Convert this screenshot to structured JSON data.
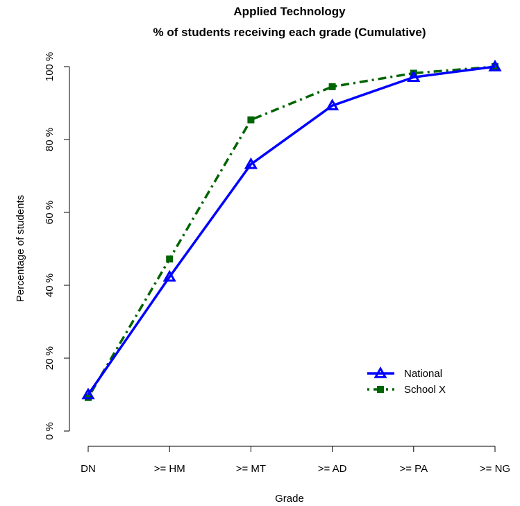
{
  "chart_data": {
    "type": "line",
    "title": "Applied Technology",
    "subtitle": "% of students receiving each grade (Cumulative)",
    "xlabel": "Grade",
    "ylabel": "Percentage of students",
    "categories": [
      "DN",
      ">= HM",
      ">= MT",
      ">= AD",
      ">= PA",
      ">= NG"
    ],
    "ylim": [
      0,
      100
    ],
    "yticks": [
      0,
      20,
      40,
      60,
      80,
      100
    ],
    "ytick_labels": [
      "0 %",
      "20 %",
      "40 %",
      "60 %",
      "80 %",
      "100 %"
    ],
    "grid": false,
    "legend_position": "bottom-right",
    "series": [
      {
        "name": "National",
        "values": [
          10,
          42.3,
          73.2,
          89.3,
          97.1,
          100
        ],
        "color": "#0000FF",
        "line_style": "solid",
        "marker": "triangle"
      },
      {
        "name": "School X",
        "values": [
          9.2,
          47.2,
          85.4,
          94.5,
          98.2,
          100
        ],
        "color": "#006400",
        "line_style": "dashdot",
        "marker": "square"
      }
    ]
  }
}
